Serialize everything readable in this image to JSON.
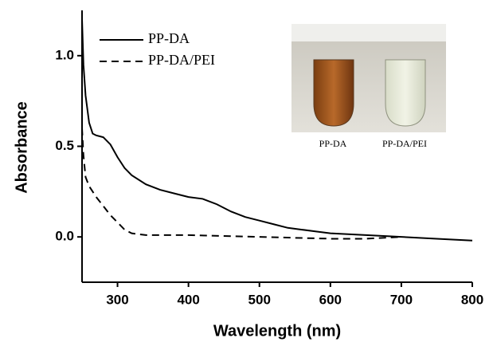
{
  "chart_data": {
    "type": "line",
    "xlabel": "Wavelength (nm)",
    "ylabel": "Absorbance",
    "xlim": [
      250,
      800
    ],
    "xticks": [
      300,
      400,
      500,
      600,
      700,
      800
    ],
    "ylim": [
      -0.25,
      1.25
    ],
    "yticks": [
      {
        "value": 0,
        "label": "0.0"
      },
      0.5,
      {
        "value": 1,
        "label": "1.0"
      }
    ],
    "legend": "upper left",
    "inset_labels": [
      "PP-DA",
      "PP-DA/PEI"
    ],
    "series": [
      {
        "name": "PP-DA",
        "color": "#000000",
        "dash": "solid",
        "x": [
          250,
          252,
          255,
          260,
          265,
          270,
          280,
          290,
          300,
          310,
          320,
          340,
          360,
          380,
          400,
          420,
          440,
          460,
          480,
          500,
          520,
          540,
          560,
          580,
          600,
          650,
          700,
          750,
          800
        ],
        "values": [
          1.2,
          0.95,
          0.78,
          0.63,
          0.57,
          0.56,
          0.55,
          0.51,
          0.44,
          0.38,
          0.34,
          0.29,
          0.26,
          0.24,
          0.22,
          0.21,
          0.18,
          0.14,
          0.11,
          0.09,
          0.07,
          0.05,
          0.04,
          0.03,
          0.02,
          0.01,
          0.0,
          -0.01,
          -0.02
        ]
      },
      {
        "name": "PP-DA/PEI",
        "color": "#000000",
        "dash": "dashed",
        "x": [
          250,
          252,
          255,
          260,
          270,
          280,
          290,
          300,
          310,
          320,
          340,
          400,
          500,
          600,
          650,
          700
        ],
        "values": [
          0.6,
          0.45,
          0.33,
          0.28,
          0.22,
          0.17,
          0.12,
          0.08,
          0.04,
          0.02,
          0.01,
          0.01,
          0.0,
          -0.01,
          -0.01,
          0.0
        ]
      }
    ]
  }
}
